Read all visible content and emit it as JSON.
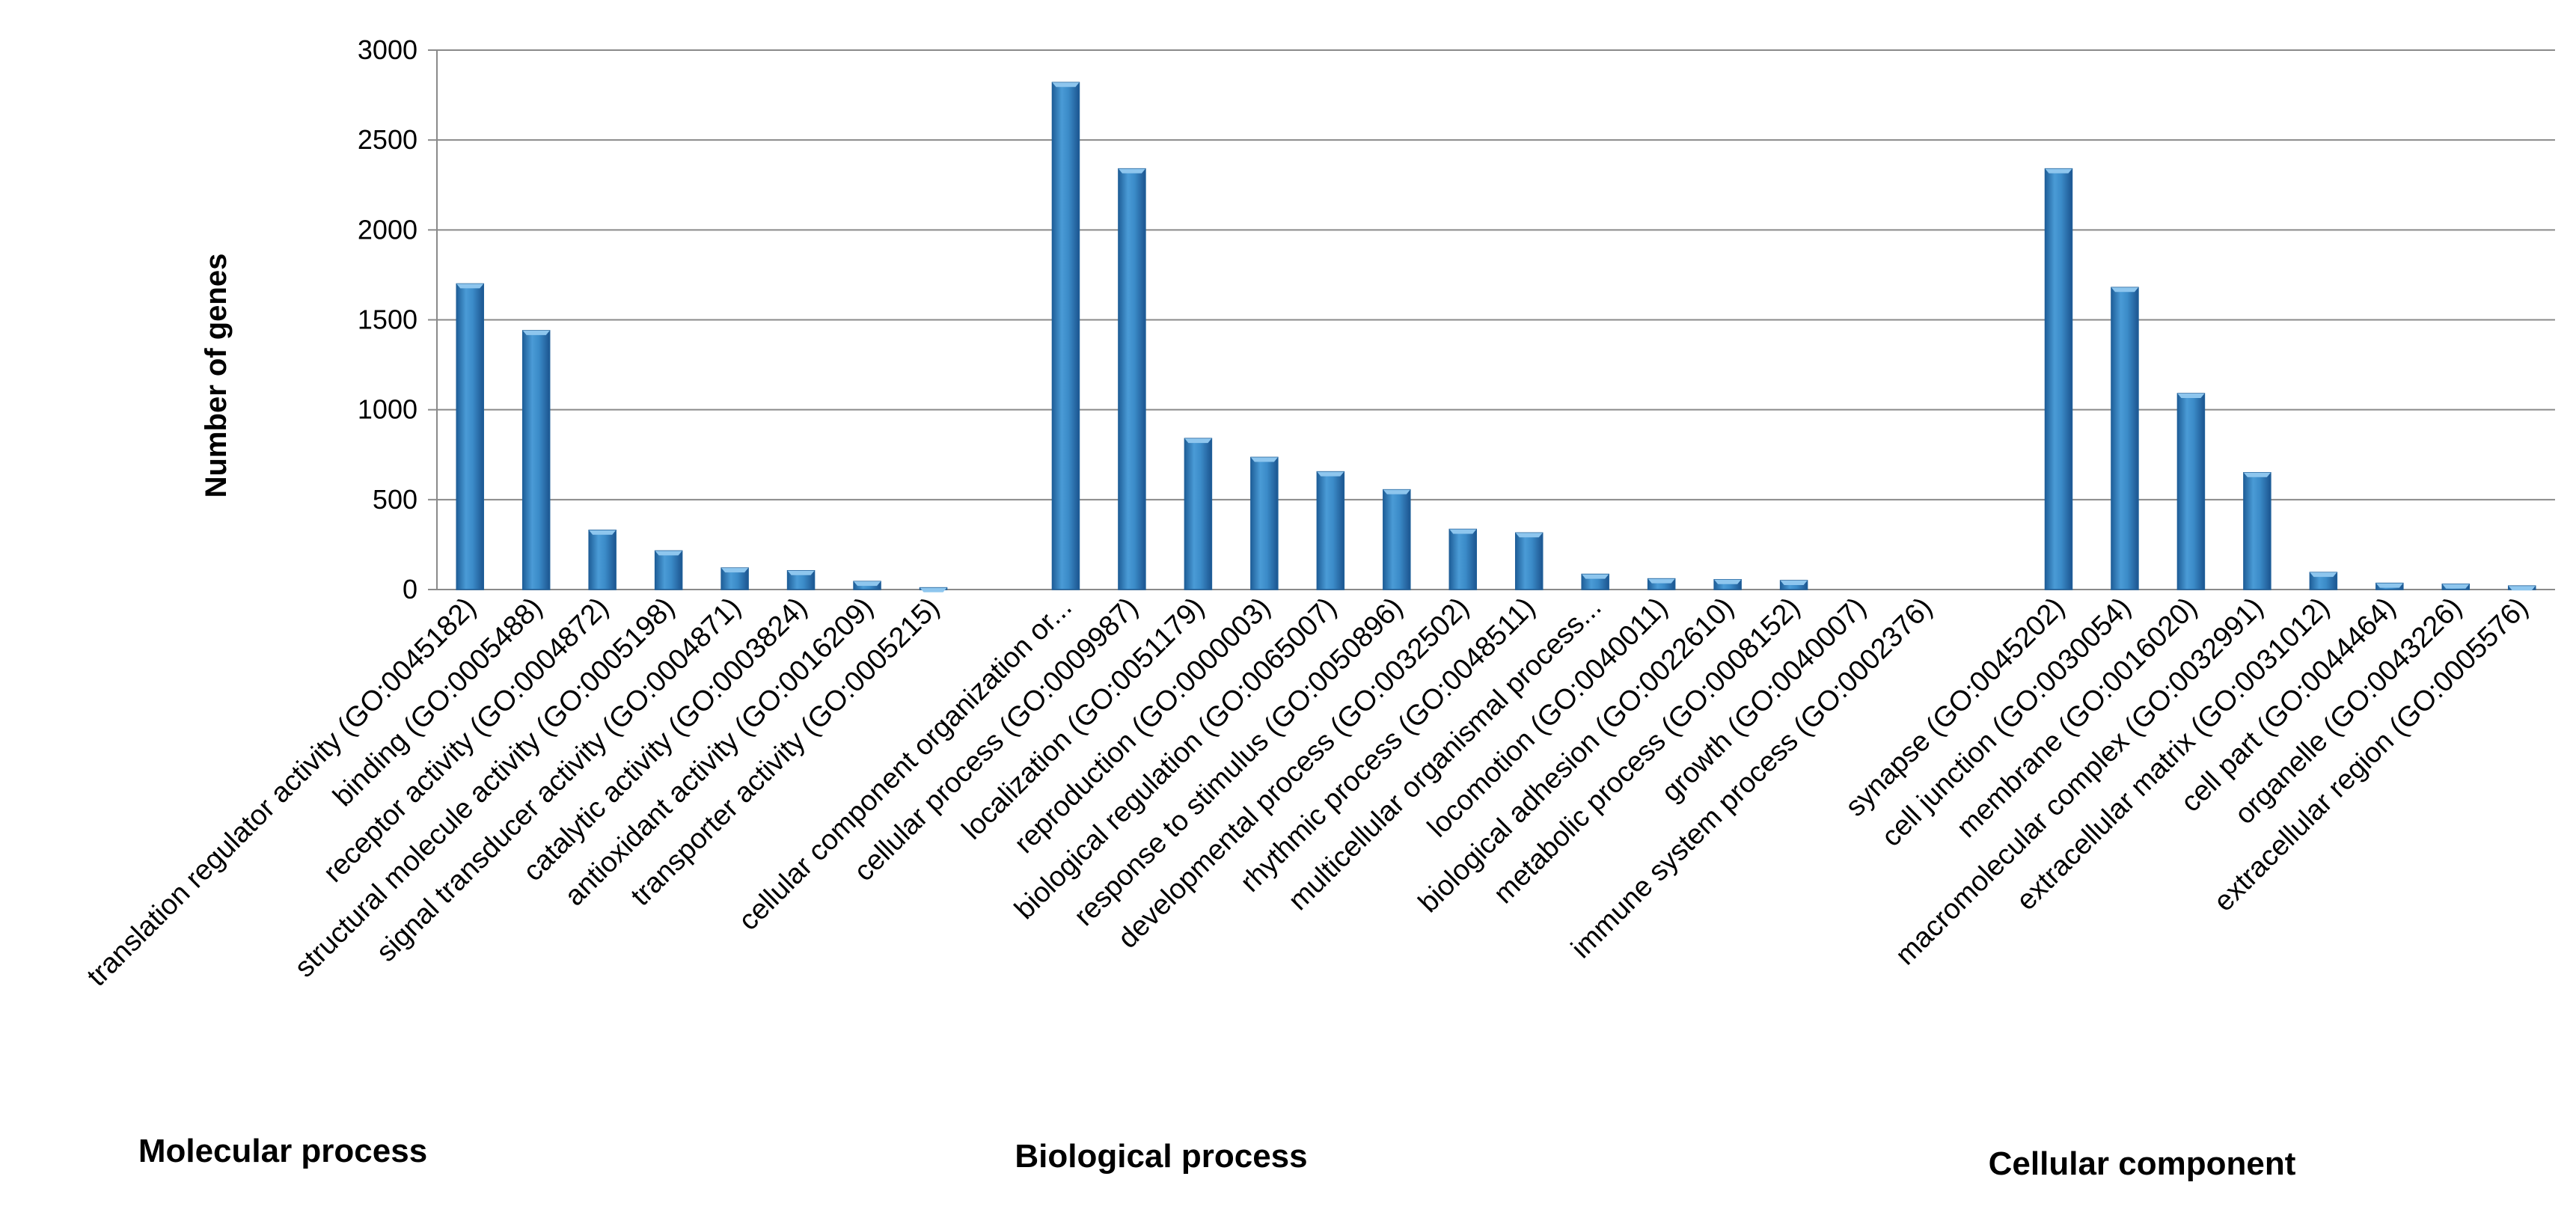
{
  "chart_data": {
    "type": "bar",
    "title": "",
    "xlabel": "",
    "ylabel": "Number of genes",
    "ylim": [
      0,
      3000
    ],
    "yticks": [
      0,
      500,
      1000,
      1500,
      2000,
      2500,
      3000
    ],
    "grid": true,
    "legend": "none",
    "categories": [
      "translation regulator activity (GO:0045182)",
      "binding (GO:0005488)",
      "receptor activity (GO:0004872)",
      "structural molecule activity (GO:0005198)",
      "signal transducer activity (GO:0004871)",
      "catalytic activity (GO:0003824)",
      "antioxidant activity (GO:0016209)",
      "transporter activity (GO:0005215)",
      "",
      "cellular component organization or...",
      "cellular process (GO:0009987)",
      "localization (GO:0051179)",
      "reproduction (GO:0000003)",
      "biological regulation (GO:0065007)",
      "response to stimulus (GO:0050896)",
      "developmental process (GO:0032502)",
      "rhythmic process (GO:0048511)",
      "multicellular organismal process...",
      "locomotion (GO:0040011)",
      "biological adhesion (GO:0022610)",
      "metabolic process (GO:0008152)",
      "growth (GO:0040007)",
      "immune system process (GO:0002376)",
      "",
      "synapse (GO:0045202)",
      "cell junction (GO:0030054)",
      "membrane (GO:0016020)",
      "macromolecular complex (GO:0032991)",
      "extracellular matrix (GO:0031012)",
      "cell part (GO:0044464)",
      "organelle (GO:0043226)",
      "extracellular region (GO:0005576)"
    ],
    "values": [
      1700,
      1440,
      330,
      215,
      120,
      105,
      45,
      10,
      null,
      2820,
      2340,
      840,
      735,
      655,
      555,
      335,
      315,
      85,
      60,
      55,
      50,
      0,
      0,
      null,
      2340,
      1680,
      1090,
      650,
      95,
      35,
      30,
      20
    ],
    "groups": [
      {
        "name": "Molecular process",
        "start": 0,
        "end": 7
      },
      {
        "name": "Biological process",
        "start": 9,
        "end": 22
      },
      {
        "name": "Cellular component",
        "start": 24,
        "end": 31
      }
    ]
  },
  "colors": {
    "bar_main": "#3b8bc8",
    "bar_light": "#8ec6ee",
    "bar_dark": "#1f5f99",
    "grid": "#8a8a8a",
    "axis": "#8a8a8a",
    "text": "#000000"
  }
}
